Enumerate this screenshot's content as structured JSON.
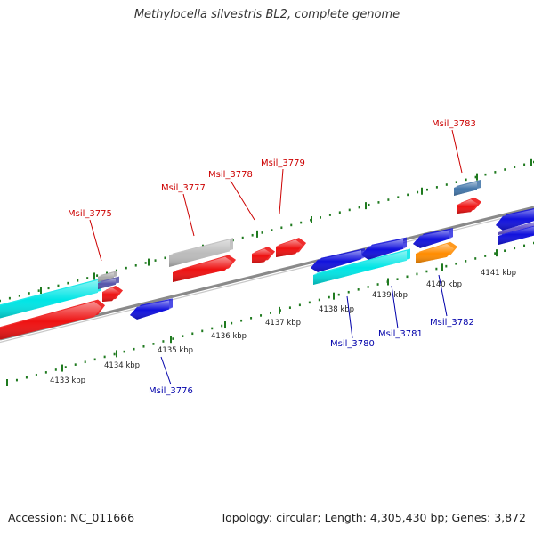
{
  "title": "Methylocella silvestris BL2, complete genome",
  "footer": {
    "accession": "Accession: NC_011666",
    "summary": "Topology: circular; Length: 4,305,430 bp; Genes: 3,872"
  },
  "colors": {
    "forward_label": "#cc0000",
    "reverse_label": "#0000aa",
    "backbone": "#8a8a8a",
    "tick": "#1f7a1f"
  },
  "scale_labels": [
    "4133 kbp",
    "4134 kbp",
    "4135 kbp",
    "4136 kbp",
    "4137 kbp",
    "4138 kbp",
    "4139 kbp",
    "4140 kbp",
    "4141 kbp"
  ],
  "forward_labels": [
    "Msil_3775",
    "Msil_3777",
    "Msil_3778",
    "Msil_3779",
    "Msil_3783"
  ],
  "reverse_labels": [
    "Msil_3776",
    "Msil_3780",
    "Msil_3781",
    "Msil_3782"
  ],
  "genes": [
    {
      "color": "#00e5e5"
    },
    {
      "color": "#ee1111"
    },
    {
      "color": "#aaaaaa"
    },
    {
      "color": "#5555aa"
    },
    {
      "color": "#ee1111"
    },
    {
      "color": "#1111dd"
    },
    {
      "color": "#bbbbbb"
    },
    {
      "color": "#ee1111"
    },
    {
      "color": "#ee1111"
    },
    {
      "color": "#ee1111"
    },
    {
      "color": "#1111dd"
    },
    {
      "color": "#1111dd"
    },
    {
      "color": "#1111dd"
    },
    {
      "color": "#00e5e5"
    },
    {
      "color": "#1111dd"
    },
    {
      "color": "#ff8c00"
    },
    {
      "color": "#4477aa"
    },
    {
      "color": "#ee1111"
    },
    {
      "color": "#1111dd"
    },
    {
      "color": "#6655cc"
    }
  ]
}
